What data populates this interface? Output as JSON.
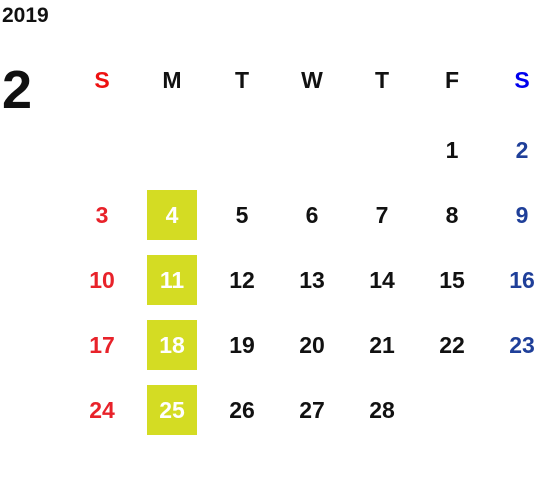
{
  "year": "2019",
  "month": "2",
  "weekdays": [
    "S",
    "M",
    "T",
    "W",
    "T",
    "F",
    "S"
  ],
  "weeks": [
    [
      null,
      null,
      null,
      null,
      null,
      1,
      2
    ],
    [
      3,
      4,
      5,
      6,
      7,
      8,
      9
    ],
    [
      10,
      11,
      12,
      13,
      14,
      15,
      16
    ],
    [
      17,
      18,
      19,
      20,
      21,
      22,
      23
    ],
    [
      24,
      25,
      26,
      27,
      28,
      null,
      null
    ]
  ]
}
